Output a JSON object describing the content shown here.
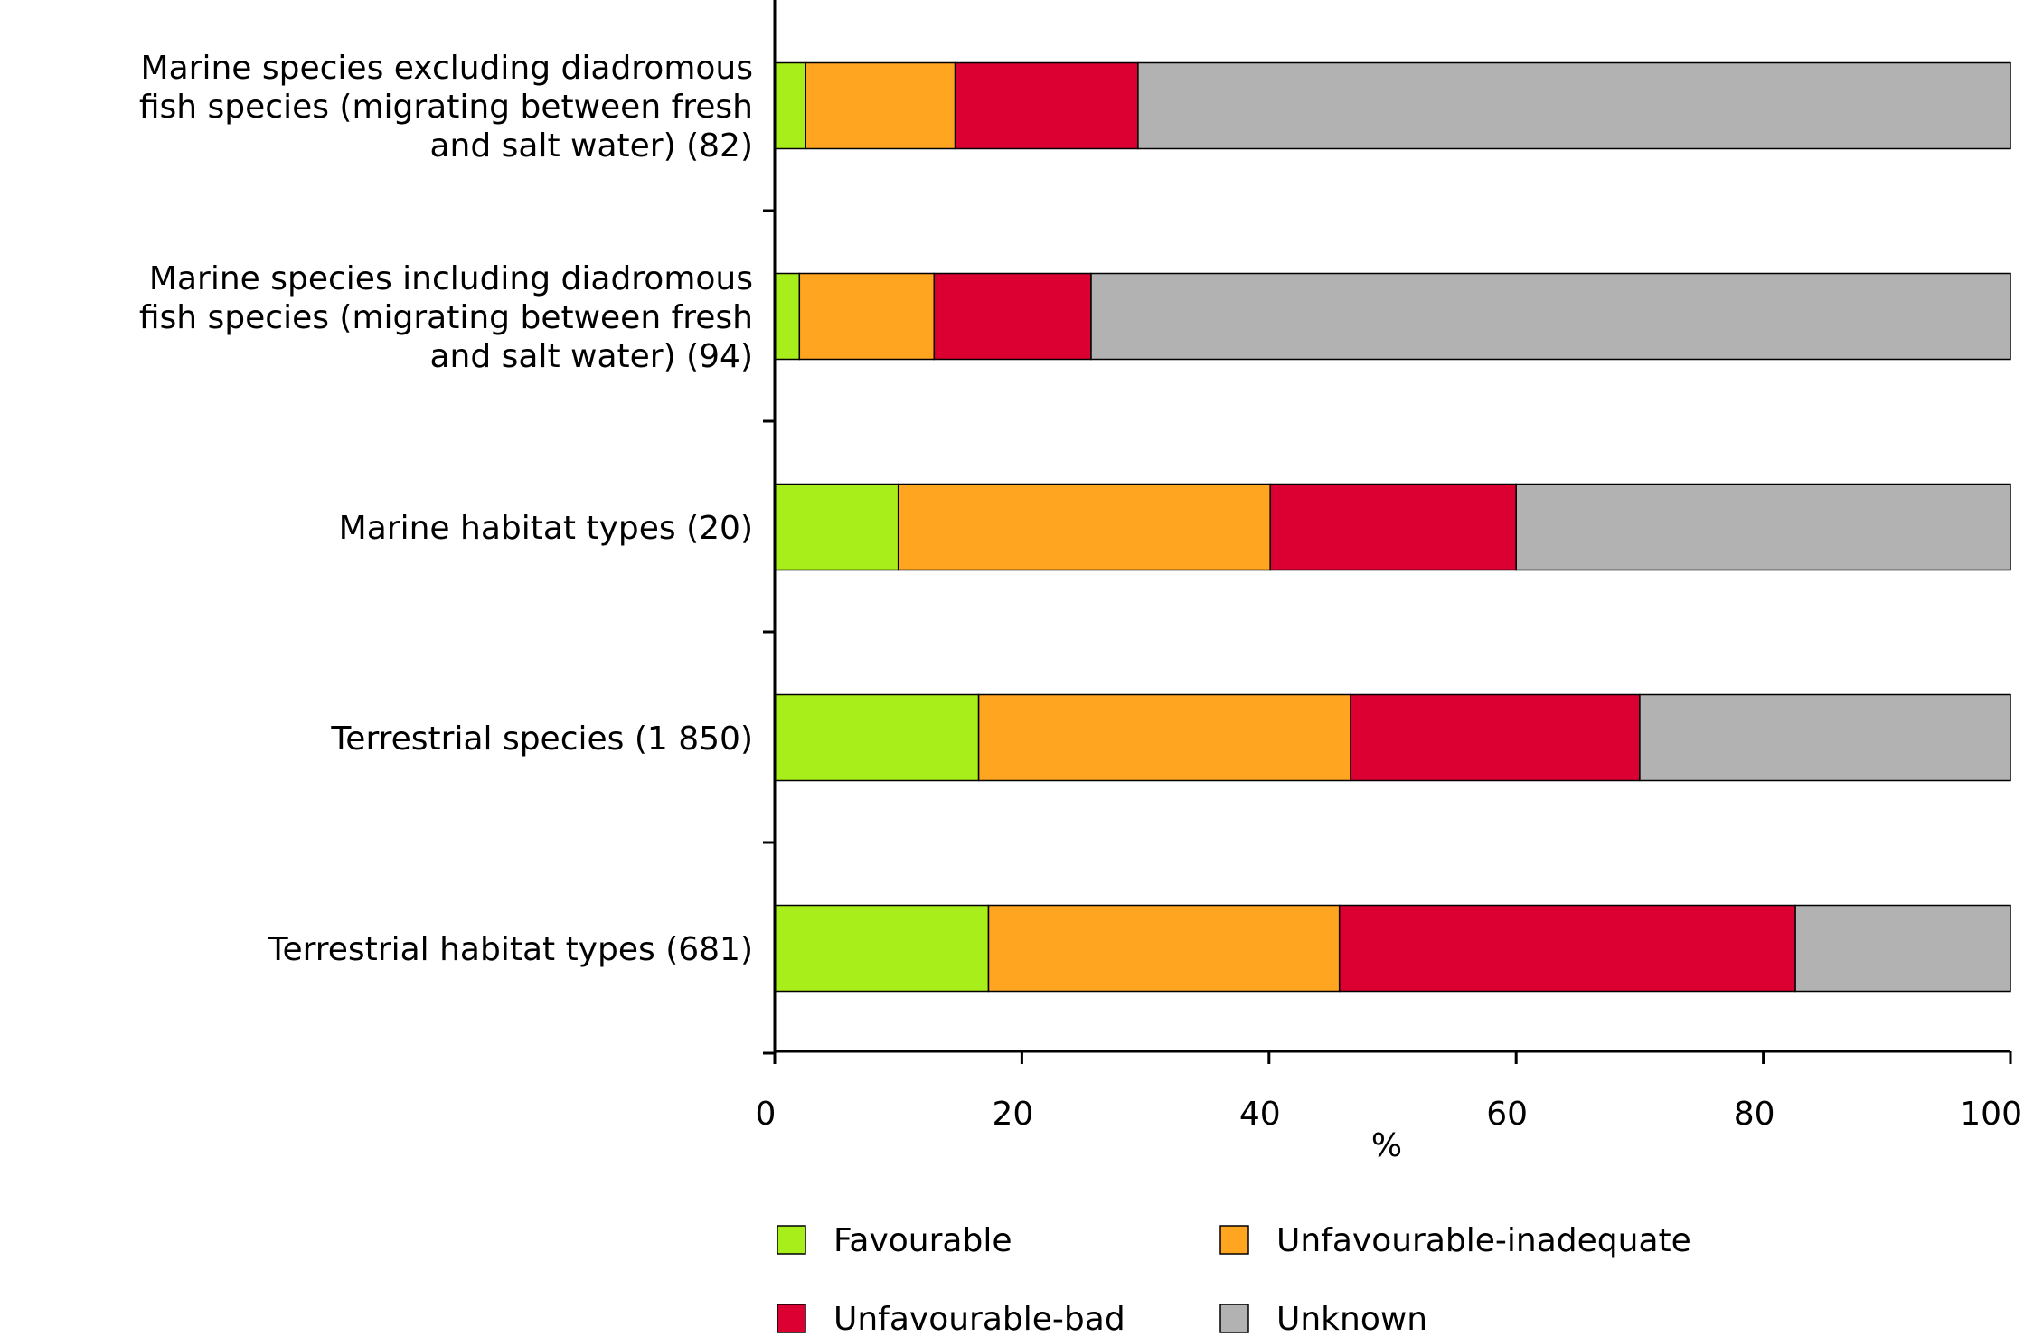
{
  "chart_data": {
    "type": "bar",
    "orientation": "horizontal",
    "stacked": true,
    "categories": [
      "Marine species excluding diadromous fish species (migrating between fresh and salt water) (82)",
      "Marine species including diadromous fish species (migrating between fresh and salt water) (94)",
      "Marine habitat types (20)",
      "Terrestrial species (1 850)",
      "Terrestrial habitat types (681)"
    ],
    "category_lines": [
      [
        "Marine species excluding diadromous",
        "fish species (migrating between fresh",
        "and salt water) (82)"
      ],
      [
        "Marine species including diadromous",
        "fish species (migrating between fresh",
        "and salt water) (94)"
      ],
      [
        "Marine habitat types (20)"
      ],
      [
        "Terrestrial species (1 850)"
      ],
      [
        "Terrestrial habitat types (681)"
      ]
    ],
    "series": [
      {
        "name": "Favourable",
        "color": "#a8ee1a",
        "values": [
          2.5,
          2.0,
          10.0,
          16.5,
          17.3
        ]
      },
      {
        "name": "Unfavourable-inadequate",
        "color": "#ffa520",
        "values": [
          12.1,
          10.9,
          30.1,
          30.1,
          28.4
        ]
      },
      {
        "name": "Unfavourable-bad",
        "color": "#dc0032",
        "values": [
          14.8,
          12.7,
          19.9,
          23.4,
          36.9
        ]
      },
      {
        "name": "Unknown",
        "color": "#b2b2b2",
        "values": [
          70.6,
          74.4,
          40.0,
          30.0,
          17.4
        ]
      }
    ],
    "xlabel": "%",
    "xlim": [
      0,
      100
    ],
    "xticks": [
      "0",
      "20",
      "40",
      "60",
      "80",
      "100"
    ],
    "grid": false,
    "legend_position": "bottom"
  }
}
